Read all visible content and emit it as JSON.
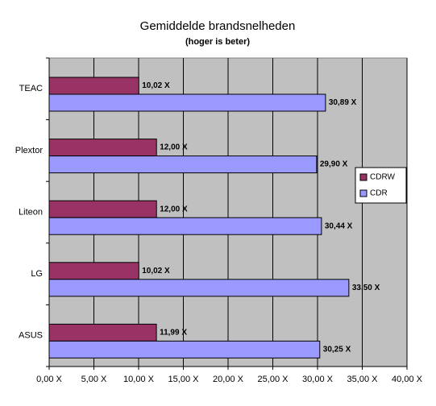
{
  "chart_data": {
    "type": "bar",
    "orientation": "horizontal",
    "title": "Gemiddelde brandsnelheden",
    "subtitle": "(hoger is beter)",
    "categories": [
      "TEAC",
      "Plextor",
      "Liteon",
      "LG",
      "ASUS"
    ],
    "series": [
      {
        "name": "CDRW",
        "color": "#993366",
        "values": [
          10.02,
          12.0,
          12.0,
          10.02,
          11.99
        ],
        "value_labels": [
          "10,02 X",
          "12,00 X",
          "12,00 X",
          "10,02 X",
          "11,99 X"
        ]
      },
      {
        "name": "CDR",
        "color": "#9999ff",
        "values": [
          30.89,
          29.9,
          30.44,
          33.5,
          30.25
        ],
        "value_labels": [
          "30,89 X",
          "29,90 X",
          "30,44 X",
          "33,50 X",
          "30,25 X"
        ]
      }
    ],
    "xlim": [
      0,
      40
    ],
    "xticks": [
      {
        "value": 0,
        "label": "0,00 X"
      },
      {
        "value": 5,
        "label": "5,00 X"
      },
      {
        "value": 10,
        "label": "10,00 X"
      },
      {
        "value": 15,
        "label": "15,00 X"
      },
      {
        "value": 20,
        "label": "20,00 X"
      },
      {
        "value": 25,
        "label": "25,00 X"
      },
      {
        "value": 30,
        "label": "30,00 X"
      },
      {
        "value": 35,
        "label": "35,00 X"
      },
      {
        "value": 40,
        "label": "40,00 X"
      }
    ],
    "grid": true,
    "legend": "right"
  }
}
